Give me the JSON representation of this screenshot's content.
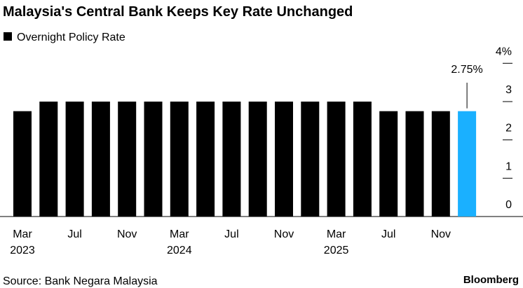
{
  "chart_data": {
    "type": "bar",
    "title": "Malaysia's Central Bank Keeps Key Rate Unchanged",
    "source": "Source: Bank Negara Malaysia",
    "brand": "Bloomberg",
    "series": [
      {
        "name": "Overnight Policy Rate",
        "color": "#000000",
        "values": [
          2.75,
          3,
          3,
          3,
          3,
          3,
          3,
          3,
          3,
          3,
          3,
          3,
          3,
          3,
          2.75,
          2.75,
          2.75,
          2.75
        ],
        "colors": [
          "#000000",
          "#000000",
          "#000000",
          "#000000",
          "#000000",
          "#000000",
          "#000000",
          "#000000",
          "#000000",
          "#000000",
          "#000000",
          "#000000",
          "#000000",
          "#000000",
          "#000000",
          "#000000",
          "#000000",
          "#1ab0ff"
        ],
        "value_labels": [
          null,
          null,
          null,
          null,
          null,
          null,
          null,
          null,
          null,
          null,
          null,
          null,
          null,
          null,
          null,
          null,
          null,
          "2.75%"
        ]
      }
    ],
    "categories": [
      "Mar",
      null,
      "Jul",
      null,
      "Nov",
      null,
      "Mar",
      null,
      "Jul",
      null,
      "Nov",
      null,
      "Mar",
      null,
      "Jul",
      null,
      "Nov",
      null
    ],
    "year_labels": [
      "2023",
      null,
      null,
      null,
      null,
      null,
      "2024",
      null,
      null,
      null,
      null,
      null,
      "2025",
      null,
      null,
      null,
      null,
      null
    ],
    "ylim": [
      0,
      4
    ],
    "yticks": [
      0,
      1,
      2,
      3,
      {
        "value": 4,
        "label": "4%"
      }
    ],
    "y_axis_side": "right"
  }
}
